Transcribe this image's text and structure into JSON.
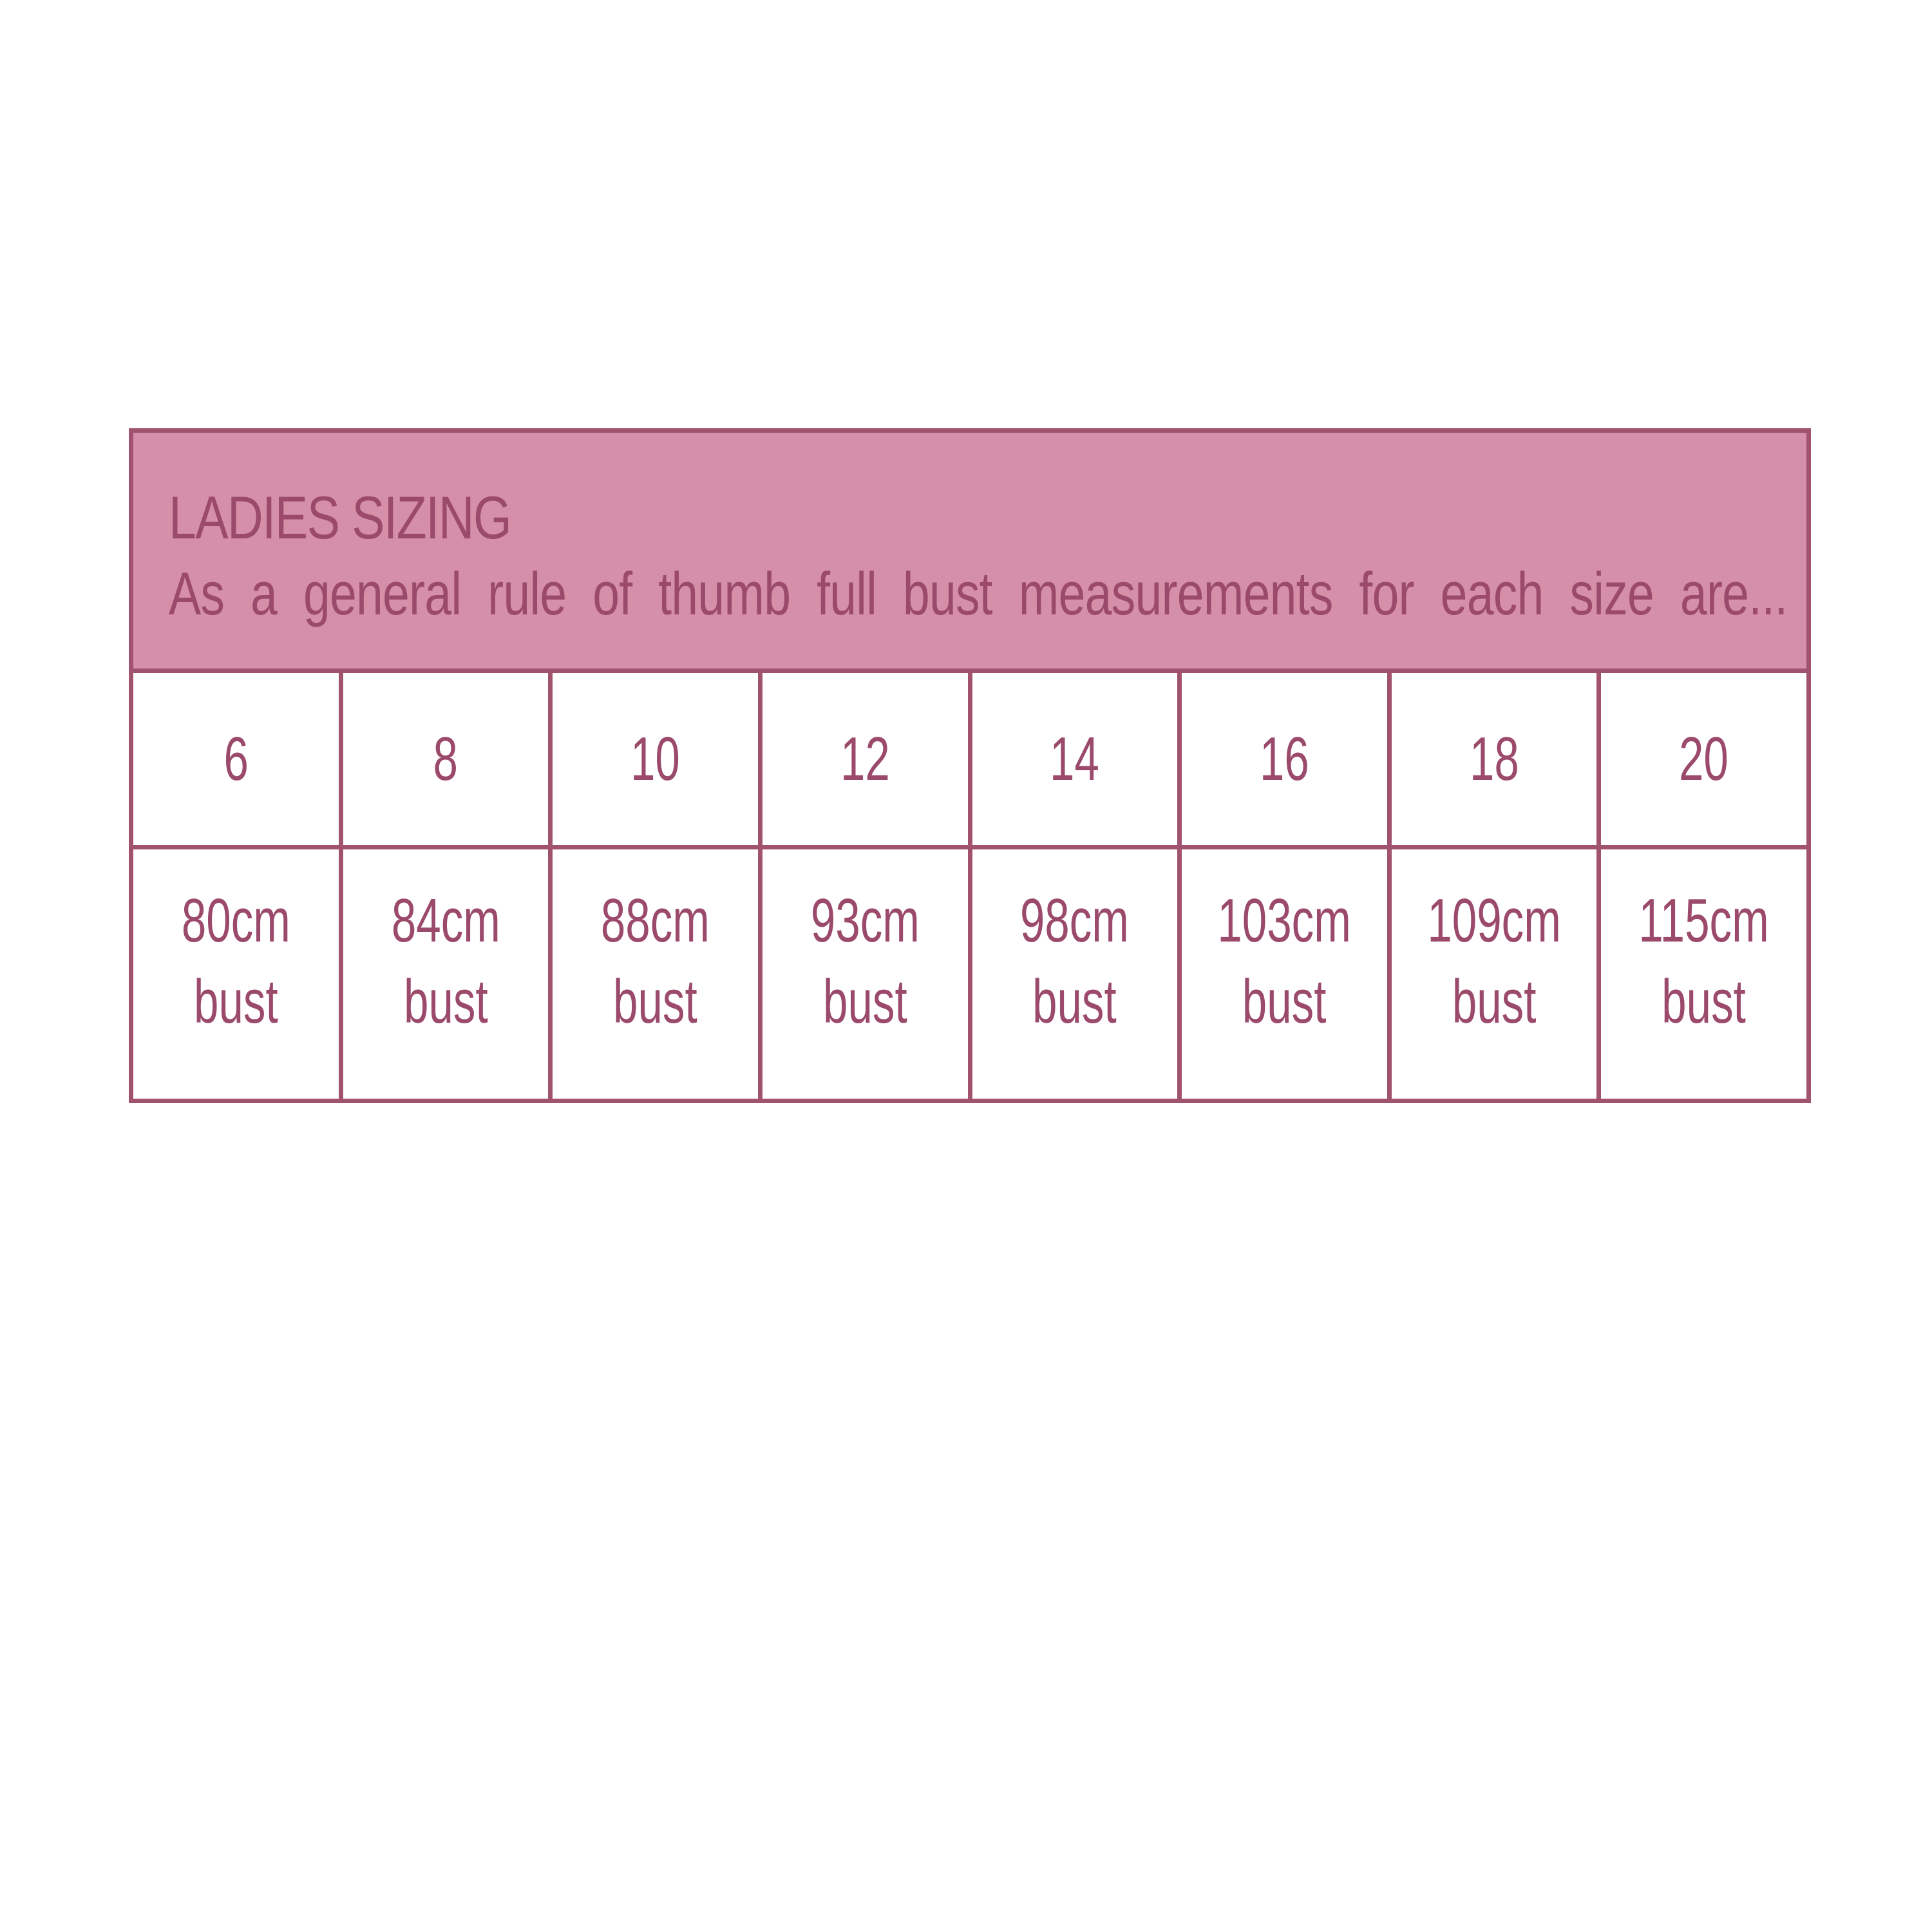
{
  "colors": {
    "border": "#a0526f",
    "header_fill": "#d68fa8",
    "text": "#9b4a6b"
  },
  "header": {
    "title": "LADIES SIZING",
    "subtitle": "As a general rule of thumb full bust measurements for each size are..."
  },
  "sizes": [
    "6",
    "8",
    "10",
    "12",
    "14",
    "16",
    "18",
    "20"
  ],
  "busts": [
    {
      "measurement": "80cm",
      "label": "bust"
    },
    {
      "measurement": "84cm",
      "label": "bust"
    },
    {
      "measurement": "88cm",
      "label": "bust"
    },
    {
      "measurement": "93cm",
      "label": "bust"
    },
    {
      "measurement": "98cm",
      "label": "bust"
    },
    {
      "measurement": "103cm",
      "label": "bust"
    },
    {
      "measurement": "109cm",
      "label": "bust"
    },
    {
      "measurement": "115cm",
      "label": "bust"
    }
  ]
}
